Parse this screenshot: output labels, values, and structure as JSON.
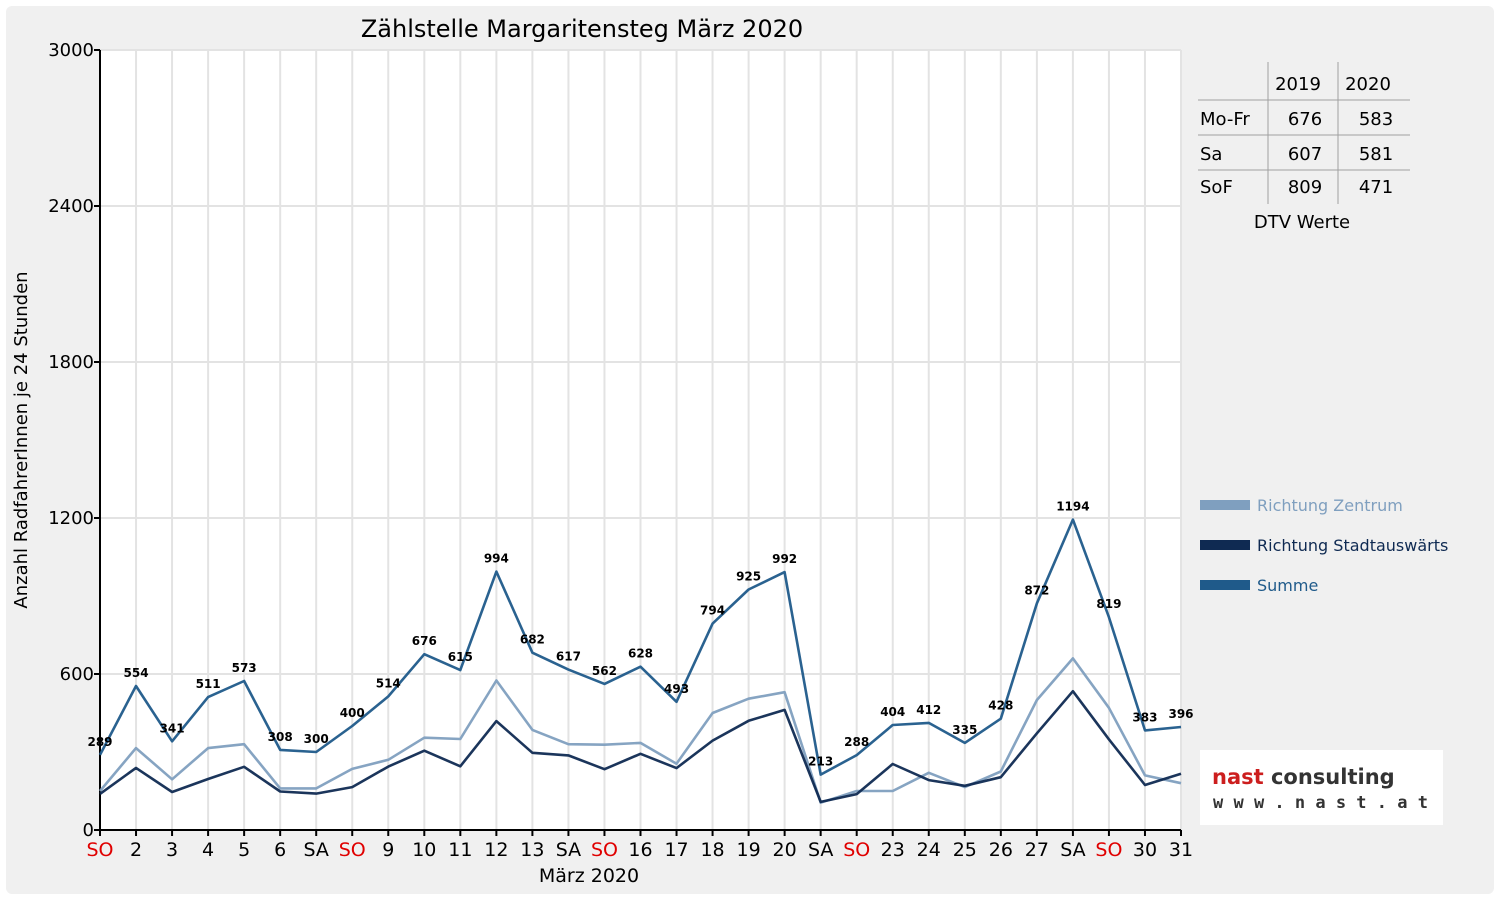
{
  "chart_data": {
    "type": "line",
    "title": "Zählstelle Margaritensteg März 2020",
    "xlabel": "März 2020",
    "ylabel": "Anzahl RadfahrerInnen je 24 Stunden",
    "ylim": [
      0,
      3000
    ],
    "yticks": [
      "0",
      "600",
      "1200",
      "1800",
      "2400",
      "3000"
    ],
    "grid": true,
    "legend_position": "right",
    "categories": [
      "SO",
      "2",
      "3",
      "4",
      "5",
      "6",
      "SA",
      "SO",
      "9",
      "10",
      "11",
      "12",
      "13",
      "SA",
      "SO",
      "16",
      "17",
      "18",
      "19",
      "20",
      "SA",
      "SO",
      "23",
      "24",
      "25",
      "26",
      "27",
      "SA",
      "SO",
      "30",
      "31"
    ],
    "highlight_categories": [
      0,
      7,
      14,
      21,
      28
    ],
    "highlight_color": "#e00000",
    "series": [
      {
        "name": "Richtung Zentrum",
        "color": "#7f9fbf",
        "values": [
          150,
          315,
          195,
          315,
          330,
          160,
          160,
          235,
          270,
          355,
          350,
          575,
          385,
          330,
          328,
          335,
          255,
          450,
          505,
          530,
          105,
          150,
          150,
          220,
          165,
          225,
          500,
          660,
          470,
          210,
          180
        ]
      },
      {
        "name": "Richtung Stadtauswärts",
        "color": "#0f2a52",
        "values": [
          139,
          239,
          146,
          196,
          243,
          148,
          140,
          165,
          244,
          305,
          245,
          419,
          297,
          287,
          234,
          293,
          238,
          344,
          420,
          462,
          108,
          138,
          254,
          192,
          170,
          203,
          372,
          534,
          349,
          173,
          216
        ]
      },
      {
        "name": "Summe",
        "color": "#1f5a8a",
        "values": [
          289,
          554,
          341,
          511,
          573,
          308,
          300,
          400,
          514,
          676,
          615,
          994,
          682,
          617,
          562,
          628,
          493,
          794,
          925,
          992,
          213,
          288,
          404,
          412,
          335,
          428,
          872,
          1194,
          819,
          383,
          396
        ]
      }
    ],
    "data_labels": [
      "289",
      "554",
      "341",
      "511",
      "573",
      "308",
      "300",
      "400",
      "514",
      "676",
      "615",
      "994",
      "682",
      "617",
      "562",
      "628",
      "493",
      "794",
      "925",
      "992",
      "213",
      "288",
      "404",
      "412",
      "335",
      "428",
      "872",
      "1194",
      "819",
      "383",
      "396"
    ]
  },
  "dtv_table": {
    "headers": [
      "2019",
      "2020"
    ],
    "rows": [
      {
        "label": "Mo-Fr",
        "v2019": "676",
        "v2020": "583"
      },
      {
        "label": "Sa",
        "v2019": "607",
        "v2020": "581"
      },
      {
        "label": "SoF",
        "v2019": "809",
        "v2020": "471"
      }
    ],
    "caption": "DTV Werte"
  },
  "logo": {
    "line1_part1": "nast",
    "line1_part2": " consulting",
    "line2": "w w w . n a s t . a t",
    "accent_color": "#cc1e1e"
  }
}
